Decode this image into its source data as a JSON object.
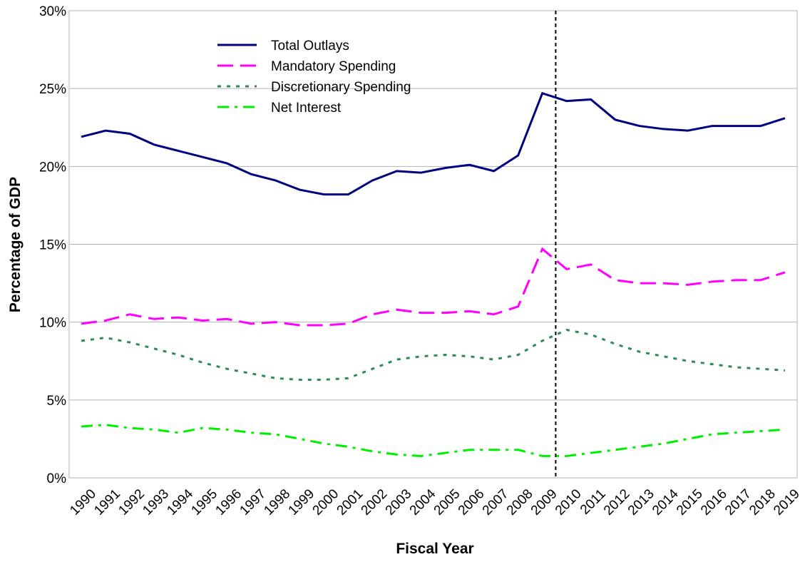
{
  "chart_data": {
    "type": "line",
    "x_label": "Fiscal Year",
    "y_label": "Percentage of GDP",
    "categories": [
      "1990",
      "1991",
      "1992",
      "1993",
      "1994",
      "1995",
      "1996",
      "1997",
      "1998",
      "1999",
      "2000",
      "2001",
      "2002",
      "2003",
      "2004",
      "2005",
      "2006",
      "2007",
      "2008",
      "2009",
      "2010",
      "2011",
      "2012",
      "2013",
      "2014",
      "2015",
      "2016",
      "2017",
      "2018",
      "2019"
    ],
    "ylim": [
      0,
      30
    ],
    "yticks": [
      {
        "value": 0,
        "label": "0%"
      },
      {
        "value": 5,
        "label": "5%"
      },
      {
        "value": 10,
        "label": "10%"
      },
      {
        "value": 15,
        "label": "15%"
      },
      {
        "value": 20,
        "label": "20%"
      },
      {
        "value": 25,
        "label": "25%"
      },
      {
        "value": 30,
        "label": "30%"
      }
    ],
    "grid": true,
    "legend": "upper left",
    "series": [
      {
        "name": "Total Outlays",
        "color": "#000080",
        "dash": "solid",
        "values": [
          21.9,
          22.3,
          22.1,
          21.4,
          21.0,
          20.6,
          20.2,
          19.5,
          19.1,
          18.5,
          18.2,
          18.2,
          19.1,
          19.7,
          19.6,
          19.9,
          20.1,
          19.7,
          20.7,
          24.7,
          24.2,
          24.3,
          23.0,
          22.6,
          22.4,
          22.3,
          22.6,
          22.6,
          22.6,
          23.1
        ]
      },
      {
        "name": "Mandatory Spending",
        "color": "#ff00ff",
        "dash": "long-dash",
        "values": [
          9.9,
          10.1,
          10.5,
          10.2,
          10.3,
          10.1,
          10.2,
          9.9,
          10.0,
          9.8,
          9.8,
          9.9,
          10.5,
          10.8,
          10.6,
          10.6,
          10.7,
          10.5,
          11.0,
          14.7,
          13.4,
          13.7,
          12.7,
          12.5,
          12.5,
          12.4,
          12.6,
          12.7,
          12.7,
          13.2
        ]
      },
      {
        "name": "Discretionary Spending",
        "color": "#2e8b57",
        "dash": "dotted",
        "values": [
          8.8,
          9.0,
          8.7,
          8.3,
          7.9,
          7.4,
          7.0,
          6.7,
          6.4,
          6.3,
          6.3,
          6.4,
          7.0,
          7.6,
          7.8,
          7.9,
          7.8,
          7.6,
          7.9,
          8.8,
          9.5,
          9.2,
          8.6,
          8.1,
          7.8,
          7.5,
          7.3,
          7.1,
          7.0,
          6.9
        ]
      },
      {
        "name": "Net Interest",
        "color": "#00ee00",
        "dash": "dash-dot",
        "values": [
          3.3,
          3.4,
          3.2,
          3.1,
          2.9,
          3.2,
          3.1,
          2.9,
          2.8,
          2.5,
          2.2,
          2.0,
          1.7,
          1.5,
          1.4,
          1.6,
          1.8,
          1.8,
          1.8,
          1.4,
          1.4,
          1.6,
          1.8,
          2.0,
          2.2,
          2.5,
          2.8,
          2.9,
          3.0,
          3.1
        ]
      }
    ]
  }
}
